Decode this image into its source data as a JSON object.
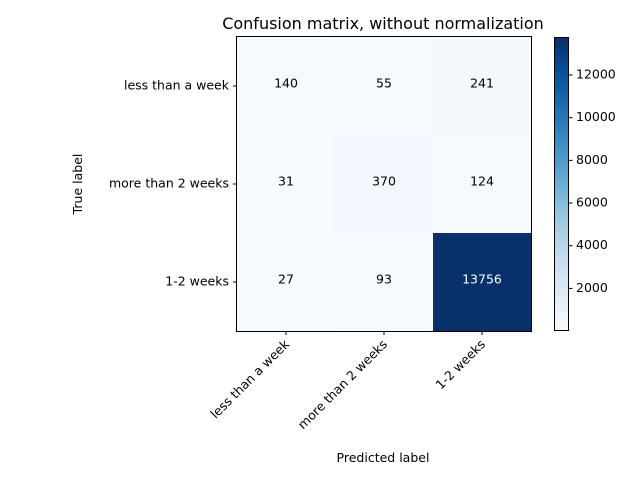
{
  "chart_data": {
    "type": "heatmap",
    "title": "Confusion matrix, without normalization",
    "xlabel": "Predicted label",
    "ylabel": "True label",
    "x_categories": [
      "less than a week",
      "more than 2 weeks",
      "1-2 weeks"
    ],
    "y_categories": [
      "less than a week",
      "more than 2 weeks",
      "1-2 weeks"
    ],
    "values": [
      [
        140,
        55,
        241
      ],
      [
        31,
        370,
        124
      ],
      [
        27,
        93,
        13756
      ]
    ],
    "colormap": "Blues",
    "colorbar": {
      "min": 27,
      "max": 13756,
      "ticks": [
        2000,
        4000,
        6000,
        8000,
        10000,
        12000
      ]
    }
  }
}
